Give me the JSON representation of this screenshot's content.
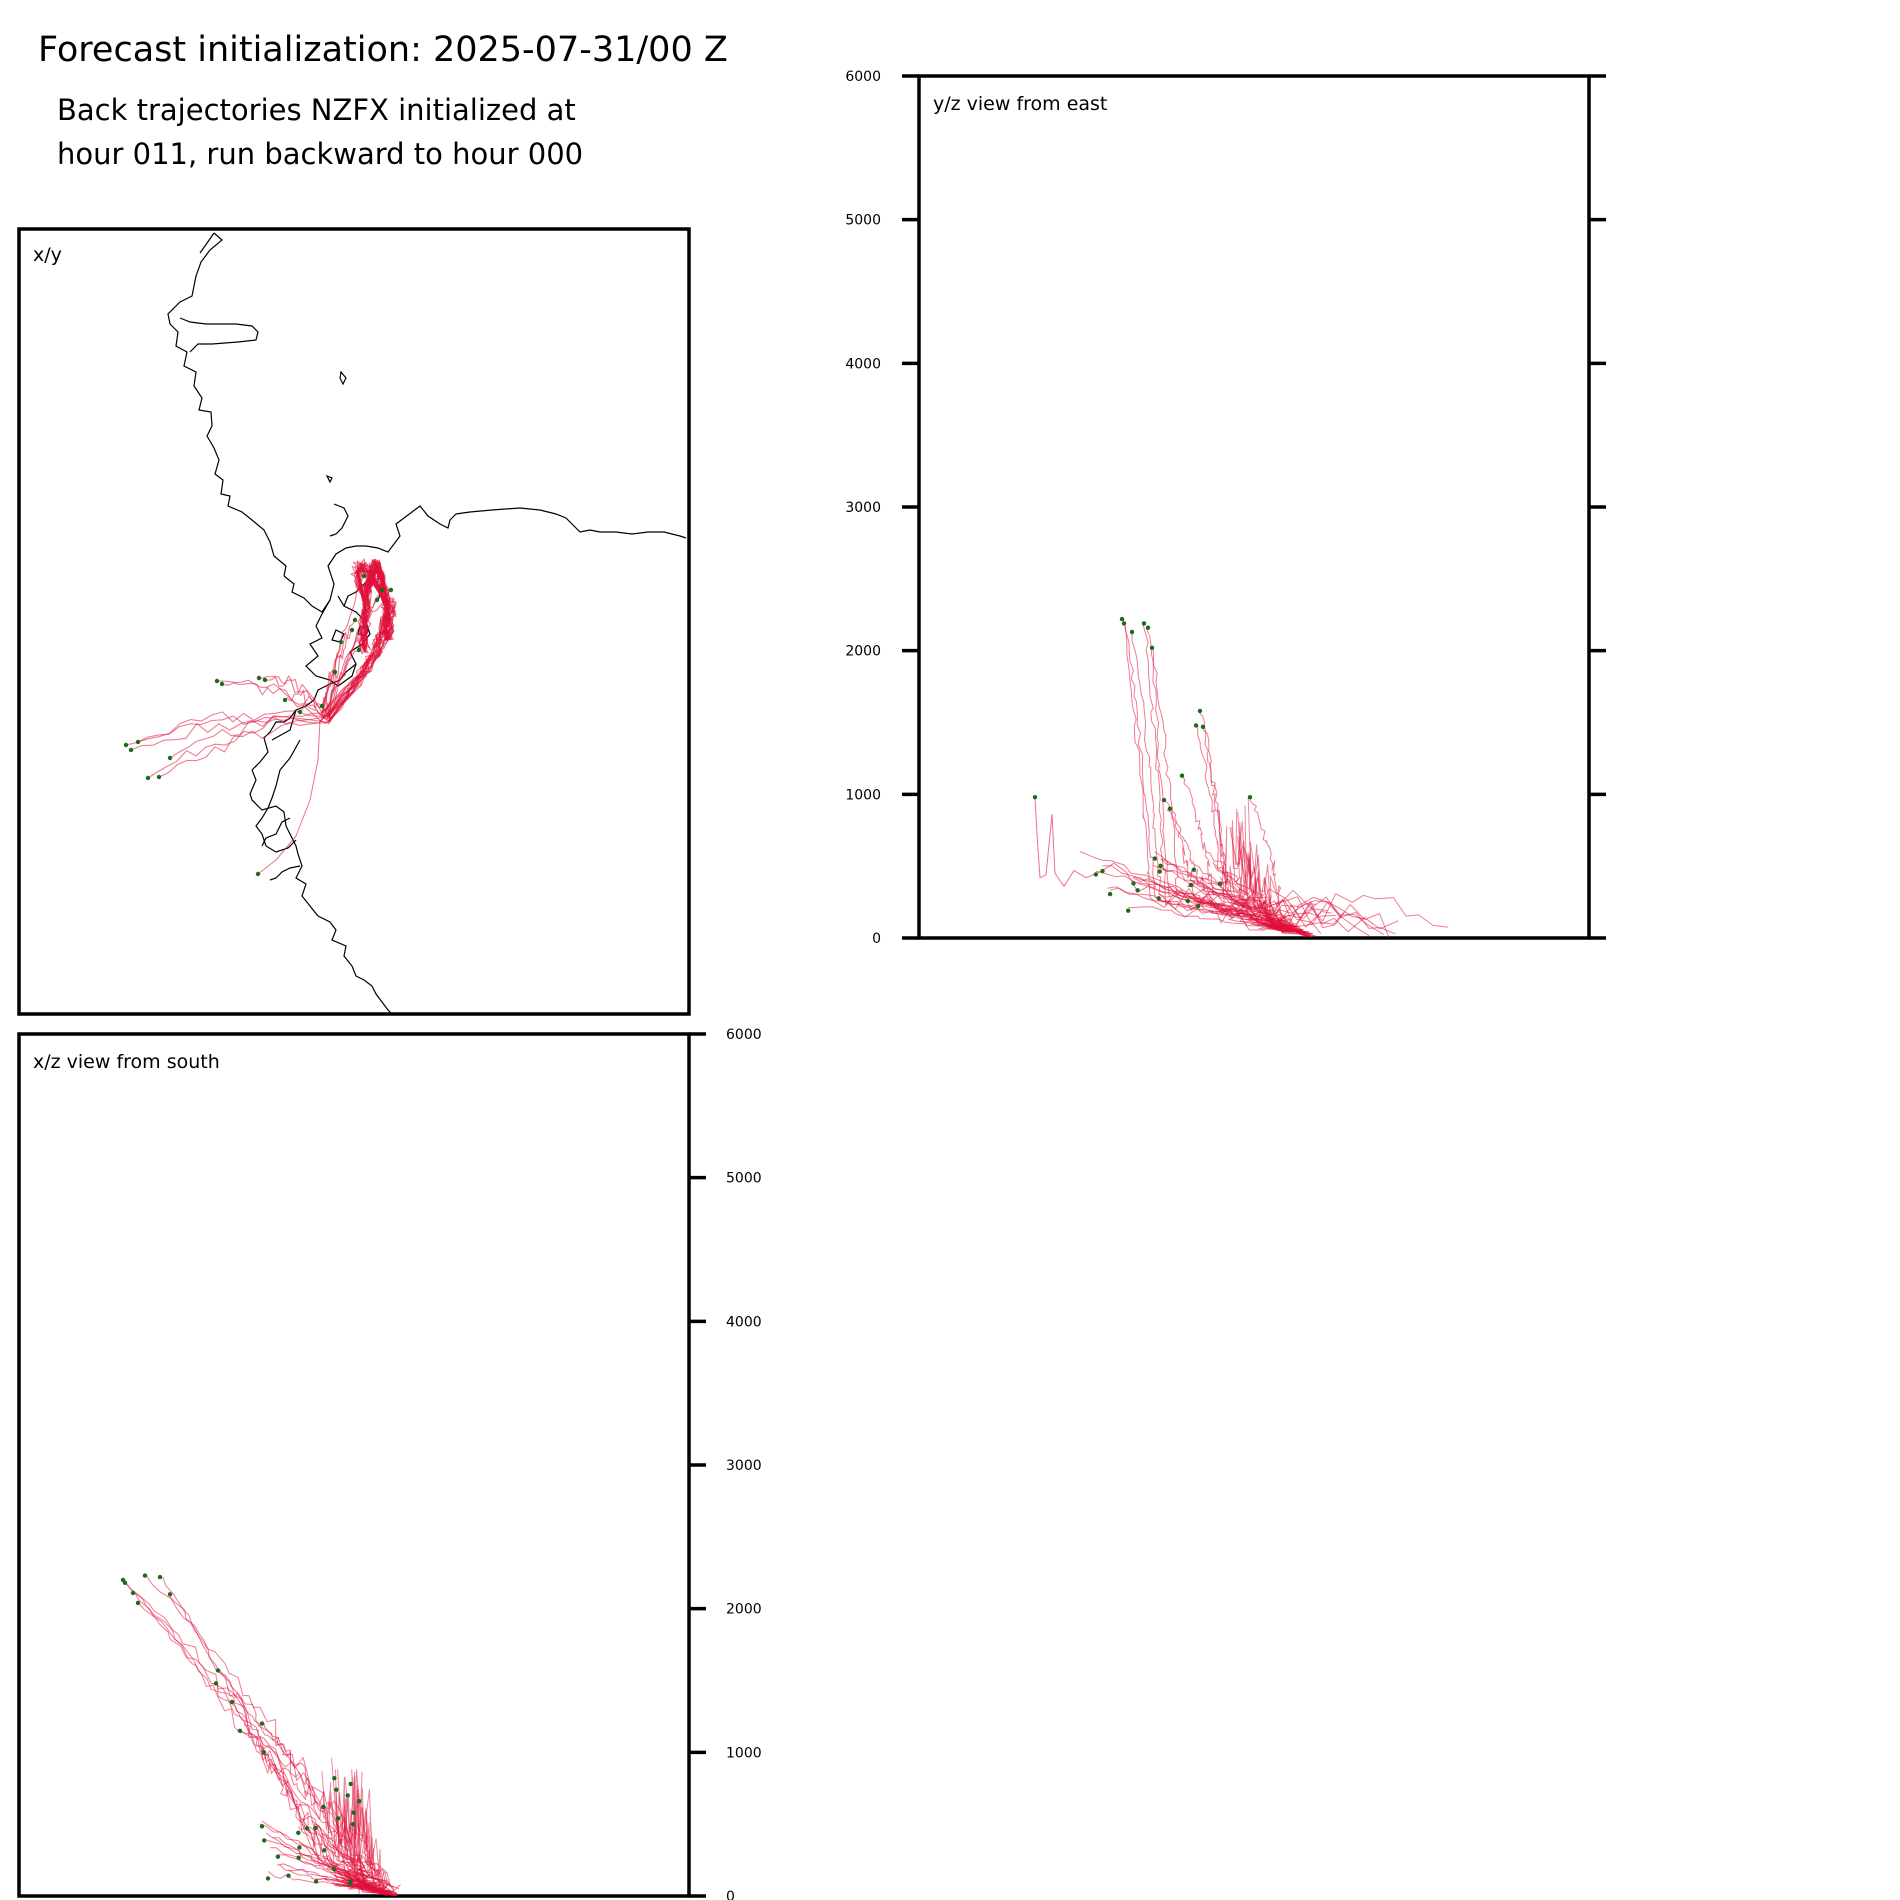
{
  "figure": {
    "title": "Forecast initialization: 2025-07-31/00 Z",
    "subtitle_lines": [
      "Back trajectories NZFX initialized at",
      "hour 011, run backward to hour 000"
    ]
  },
  "chart_data": [
    {
      "id": "xy",
      "type": "line",
      "title": "x/y",
      "xlabel": "",
      "ylabel": "",
      "note": "map view with coastline and back trajectories",
      "grid": false,
      "legend": "none",
      "colors": {
        "trajectory": "#e0103a",
        "start_point": "#1a6b1a",
        "coastline": "#000000"
      }
    },
    {
      "id": "yz",
      "type": "line",
      "title": "y/z view from east",
      "xlabel": "",
      "ylabel": "",
      "ylim": [
        0,
        6000
      ],
      "yticks": [
        0,
        1000,
        2000,
        3000,
        4000,
        5000,
        6000
      ],
      "ytick_side": "left",
      "grid": false,
      "legend": "none"
    },
    {
      "id": "xz",
      "type": "line",
      "title": "x/z view from south",
      "xlabel": "",
      "ylabel": "",
      "ylim": [
        0,
        6000
      ],
      "yticks": [
        0,
        1000,
        2000,
        3000,
        4000,
        5000,
        6000
      ],
      "ytick_side": "right",
      "grid": false,
      "legend": "none"
    }
  ]
}
